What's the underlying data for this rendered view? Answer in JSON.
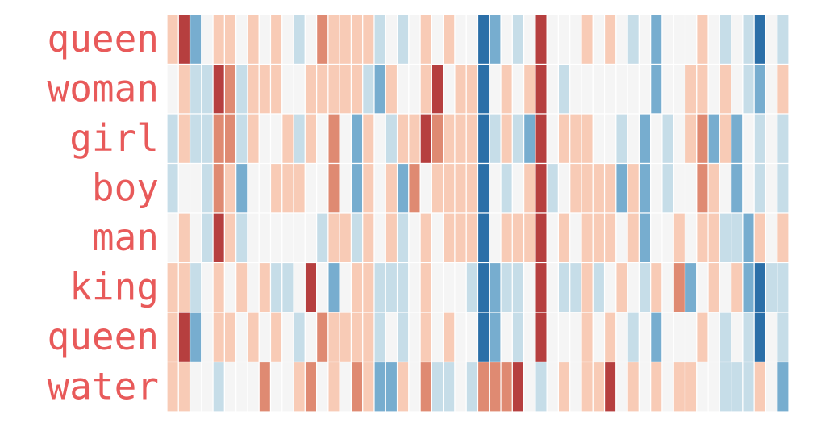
{
  "chart_data": {
    "type": "heatmap",
    "title": "",
    "xlabel": "",
    "ylabel": "",
    "value_range": [
      -2,
      2
    ],
    "colormap": "RdBu",
    "label_color": "#e85a5a",
    "palette": {
      "-2": "#2b6fa8",
      "-1": "#77adcf",
      "-0.5": "#c6dde8",
      "0": "#f5f5f5",
      "0.5": "#f8cbb6",
      "1": "#df8a72",
      "2": "#b63f3f"
    },
    "rows": [
      "queen",
      "woman",
      "girl",
      "boy",
      "man",
      "king",
      "queen",
      "water"
    ],
    "values": [
      [
        0.5,
        2,
        -1,
        0,
        0.5,
        0.5,
        0,
        0.5,
        0,
        0.5,
        0,
        -0.5,
        0,
        1,
        0.5,
        0.5,
        0.5,
        0.5,
        -0.5,
        0,
        -0.5,
        0,
        0.5,
        0,
        0.5,
        0,
        0,
        -2,
        -1,
        0,
        -0.5,
        0,
        2,
        0,
        0,
        0,
        0.5,
        0,
        0.5,
        0,
        -0.5,
        0,
        -1,
        0,
        0,
        0,
        0.5,
        0,
        -0.5,
        0,
        -0.5,
        -2,
        0,
        -0.5
      ],
      [
        0,
        0.5,
        -0.5,
        -0.5,
        2,
        1,
        -0.5,
        0.5,
        0.5,
        0.5,
        0,
        0,
        0.5,
        0.5,
        0.5,
        0.5,
        0.5,
        -0.5,
        -1,
        0.5,
        0,
        0,
        0.5,
        2,
        0,
        0.5,
        0.5,
        -2,
        0,
        0.5,
        0,
        0.5,
        2,
        0,
        -0.5,
        0,
        0,
        0,
        0,
        0,
        0,
        0,
        -1,
        0,
        0,
        0.5,
        0.5,
        0,
        0.5,
        0,
        -0.5,
        -1,
        0,
        0.5
      ],
      [
        -0.5,
        0.5,
        -0.5,
        -0.5,
        1,
        1,
        -0.5,
        0.5,
        0,
        0,
        0.5,
        -0.5,
        0.5,
        0,
        1,
        0,
        -1,
        0.5,
        0,
        -0.5,
        0.5,
        0.5,
        2,
        1,
        0.5,
        0.5,
        0.5,
        -2,
        -0.5,
        0.5,
        -0.5,
        -1,
        2,
        0,
        0.5,
        0.5,
        0.5,
        0,
        0,
        -0.5,
        0,
        -1,
        0,
        -0.5,
        0,
        0.5,
        1,
        -1,
        0.5,
        -1,
        0,
        -0.5,
        0,
        -0.5
      ],
      [
        -0.5,
        0,
        0,
        -0.5,
        1,
        0.5,
        -1,
        0,
        0,
        0.5,
        0.5,
        0.5,
        0,
        0,
        1,
        0,
        -1,
        0.5,
        0,
        0.5,
        -1,
        1,
        0,
        0.5,
        0.5,
        0.5,
        0.5,
        -2,
        0,
        -0.5,
        0,
        0.5,
        2,
        -0.5,
        0,
        0.5,
        0.5,
        0.5,
        0.5,
        -1,
        0.5,
        -1,
        0,
        -0.5,
        0,
        0,
        1,
        0.5,
        0,
        -1,
        0,
        -0.5,
        0,
        -0.5
      ],
      [
        0,
        0.5,
        0,
        -0.5,
        2,
        0.5,
        -0.5,
        0,
        0,
        0,
        0,
        0,
        0,
        -0.5,
        0.5,
        0.5,
        -0.5,
        0.5,
        0,
        0.5,
        -0.5,
        0,
        0.5,
        0,
        0.5,
        0.5,
        0.5,
        -2,
        0,
        0.5,
        0.5,
        0.5,
        2,
        0,
        0.5,
        0,
        0.5,
        0.5,
        0.5,
        0,
        0.5,
        -1,
        0,
        0,
        0.5,
        0,
        0.5,
        0.5,
        -0.5,
        -0.5,
        -1,
        0.5,
        0,
        0.5
      ],
      [
        0.5,
        0.5,
        -0.5,
        0,
        0.5,
        0,
        0.5,
        0,
        0.5,
        -0.5,
        -0.5,
        0,
        2,
        0,
        -1,
        0,
        0.5,
        0.5,
        -0.5,
        -0.5,
        -0.5,
        0,
        0.5,
        0,
        0,
        0,
        -0.5,
        -2,
        -1,
        -0.5,
        -0.5,
        0,
        2,
        0,
        -0.5,
        -0.5,
        0.5,
        -0.5,
        0,
        0.5,
        0,
        -0.5,
        0.5,
        0,
        1,
        -1,
        0,
        0.5,
        0,
        0.5,
        -1,
        -2,
        -0.5,
        -0.5
      ],
      [
        0.5,
        2,
        -1,
        0,
        0.5,
        0.5,
        0,
        0.5,
        0,
        0.5,
        0,
        -0.5,
        0,
        1,
        0.5,
        0.5,
        0.5,
        0.5,
        -0.5,
        0,
        -0.5,
        0,
        0.5,
        0,
        0.5,
        0,
        0,
        -2,
        -1,
        0,
        -0.5,
        0,
        2,
        0,
        0,
        0,
        0.5,
        0,
        0.5,
        0,
        -0.5,
        0,
        -1,
        0,
        0,
        0,
        0.5,
        0,
        -0.5,
        0,
        -0.5,
        -2,
        0,
        -0.5
      ],
      [
        0.5,
        0.5,
        0,
        0,
        -0.5,
        0,
        0,
        0,
        1,
        0,
        0,
        0.5,
        1,
        0,
        0.5,
        0,
        1,
        0.5,
        -1,
        -1,
        0.5,
        0,
        1,
        -0.5,
        -0.5,
        0,
        -0.5,
        1,
        1,
        1,
        2,
        0,
        -0.5,
        0,
        0.5,
        0,
        0.5,
        0.5,
        2,
        0,
        0.5,
        0,
        0.5,
        0,
        0.5,
        0.5,
        0,
        0,
        -0.5,
        -0.5,
        -0.5,
        0.5,
        0,
        -1
      ]
    ]
  }
}
